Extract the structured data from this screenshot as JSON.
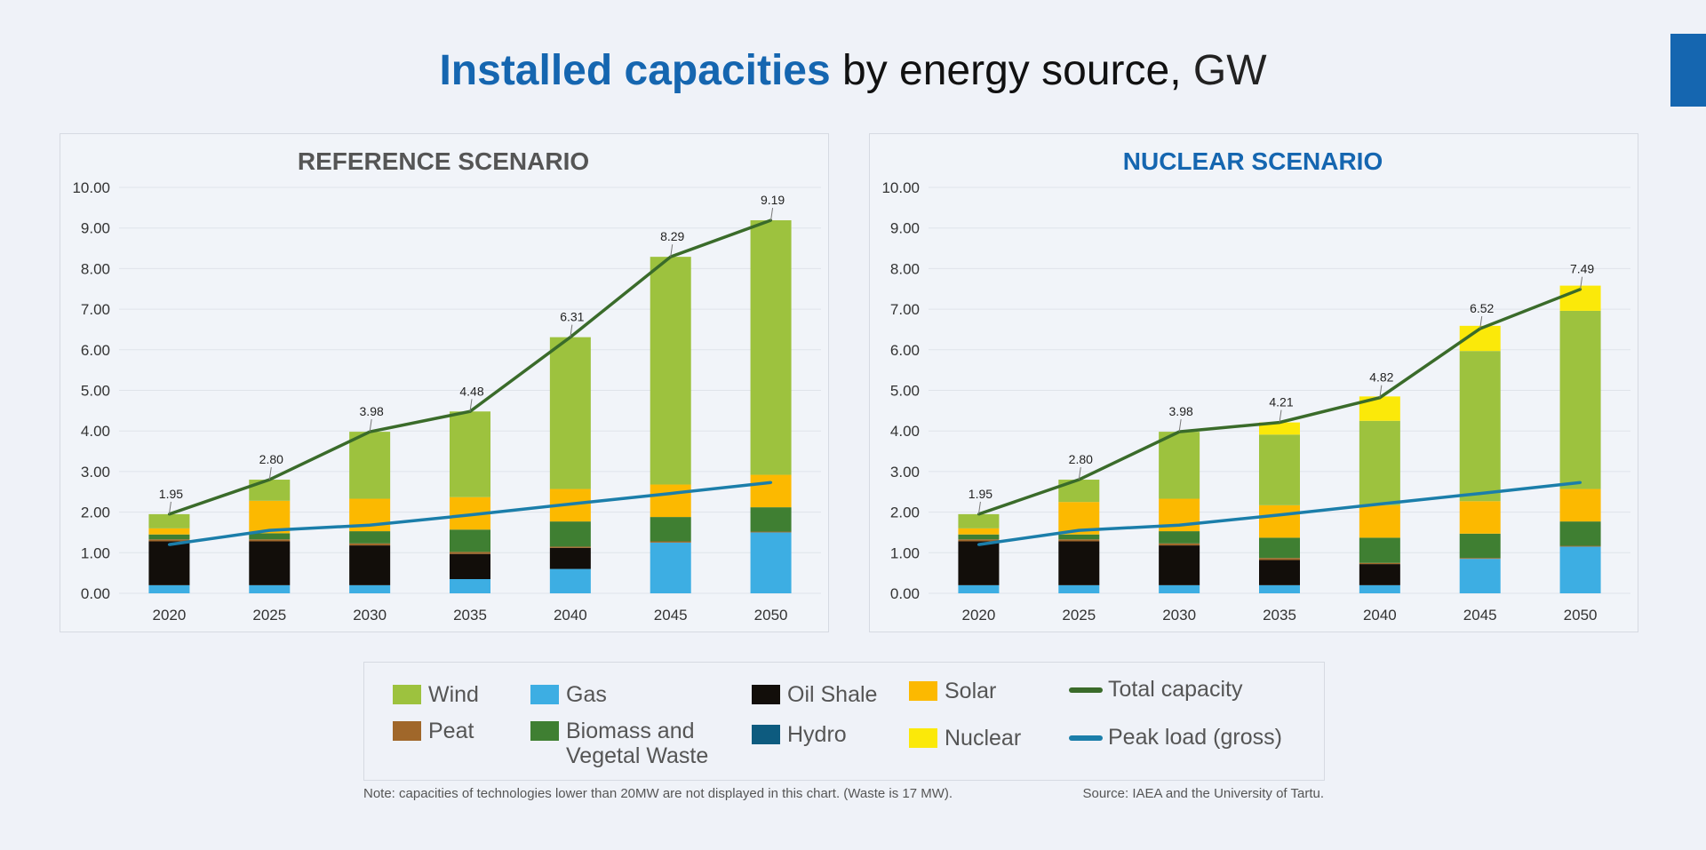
{
  "title": {
    "bold": "Installed capacities",
    "rest": " by energy source,",
    "unit": " GW"
  },
  "colors": {
    "accent": "#1566b0",
    "Wind": "#9dc23e",
    "Gas": "#3daee3",
    "Oil Shale": "#120e0a",
    "Solar": "#fcb900",
    "Peat": "#a0672a",
    "Biomass and Vegetal Waste": "#3f7f32",
    "Hydro": "#0d5b7f",
    "Nuclear": "#fbe909",
    "Total capacity": "#3a6b2a",
    "Peak load (gross)": "#1b7eaa"
  },
  "legend": [
    {
      "key": "Wind",
      "label": "Wind",
      "kind": "swatch"
    },
    {
      "key": "Gas",
      "label": "Gas",
      "kind": "swatch"
    },
    {
      "key": "Oil Shale",
      "label": "Oil Shale",
      "kind": "swatch"
    },
    {
      "key": "Solar",
      "label": "Solar",
      "kind": "swatch"
    },
    {
      "key": "Total capacity",
      "label": "Total capacity",
      "kind": "line"
    },
    {
      "key": "Peat",
      "label": "Peat",
      "kind": "swatch"
    },
    {
      "key": "Biomass and Vegetal Waste",
      "label": "Biomass and\nVegetal Waste",
      "kind": "swatch"
    },
    {
      "key": "Hydro",
      "label": "Hydro",
      "kind": "swatch"
    },
    {
      "key": "Nuclear",
      "label": "Nuclear",
      "kind": "swatch"
    },
    {
      "key": "Peak load (gross)",
      "label": "Peak load (gross)",
      "kind": "line"
    }
  ],
  "note": "Note: capacities of technologies lower than 20MW are not displayed in this chart. (Waste is 17 MW).",
  "source": "Source: IAEA and the University of Tartu.",
  "chart_data": [
    {
      "type": "bar",
      "stacked": true,
      "title": "REFERENCE SCENARIO",
      "title_color": "#555555",
      "categories": [
        "2020",
        "2025",
        "2030",
        "2035",
        "2040",
        "2045",
        "2050"
      ],
      "ylim": [
        0,
        10
      ],
      "yticks": [
        "0.00",
        "1.00",
        "2.00",
        "3.00",
        "4.00",
        "5.00",
        "6.00",
        "7.00",
        "8.00",
        "9.00",
        "10.00"
      ],
      "grid": true,
      "series": [
        {
          "name": "Gas",
          "values": [
            0.2,
            0.2,
            0.2,
            0.35,
            0.6,
            1.25,
            1.5
          ]
        },
        {
          "name": "Oil Shale",
          "values": [
            1.08,
            1.08,
            0.98,
            0.62,
            0.52,
            0.0,
            0.0
          ]
        },
        {
          "name": "Peat",
          "values": [
            0.05,
            0.05,
            0.05,
            0.05,
            0.03,
            0.03,
            0.02
          ]
        },
        {
          "name": "Biomass and Vegetal Waste",
          "values": [
            0.12,
            0.15,
            0.3,
            0.55,
            0.62,
            0.6,
            0.6
          ]
        },
        {
          "name": "Solar",
          "values": [
            0.15,
            0.8,
            0.8,
            0.8,
            0.8,
            0.8,
            0.8
          ]
        },
        {
          "name": "Wind",
          "values": [
            0.35,
            0.52,
            1.65,
            2.11,
            3.74,
            5.61,
            6.27
          ]
        }
      ],
      "lines": [
        {
          "name": "Total capacity",
          "values": [
            1.95,
            2.8,
            3.98,
            4.48,
            6.31,
            8.29,
            9.19
          ],
          "data_labels": [
            "1.95",
            "2.80",
            "3.98",
            "4.48",
            "6.31",
            "8.29",
            "9.19"
          ]
        },
        {
          "name": "Peak load (gross)",
          "values": [
            1.2,
            1.55,
            1.68,
            1.93,
            2.2,
            2.46,
            2.73
          ]
        }
      ]
    },
    {
      "type": "bar",
      "stacked": true,
      "title": "NUCLEAR SCENARIO",
      "title_color": "#1566b0",
      "categories": [
        "2020",
        "2025",
        "2030",
        "2035",
        "2040",
        "2045",
        "2050"
      ],
      "ylim": [
        0,
        10
      ],
      "yticks": [
        "0.00",
        "1.00",
        "2.00",
        "3.00",
        "4.00",
        "5.00",
        "6.00",
        "7.00",
        "8.00",
        "9.00",
        "10.00"
      ],
      "grid": true,
      "series": [
        {
          "name": "Gas",
          "values": [
            0.2,
            0.2,
            0.2,
            0.2,
            0.2,
            0.85,
            1.15
          ]
        },
        {
          "name": "Oil Shale",
          "values": [
            1.08,
            1.08,
            0.98,
            0.62,
            0.52,
            0.0,
            0.0
          ]
        },
        {
          "name": "Peat",
          "values": [
            0.05,
            0.05,
            0.05,
            0.05,
            0.03,
            0.02,
            0.02
          ]
        },
        {
          "name": "Biomass and Vegetal Waste",
          "values": [
            0.12,
            0.12,
            0.3,
            0.5,
            0.62,
            0.6,
            0.6
          ]
        },
        {
          "name": "Solar",
          "values": [
            0.15,
            0.8,
            0.8,
            0.8,
            0.8,
            0.8,
            0.8
          ]
        },
        {
          "name": "Wind",
          "values": [
            0.35,
            0.55,
            1.65,
            1.74,
            2.08,
            3.7,
            4.39
          ]
        },
        {
          "name": "Nuclear",
          "values": [
            0.0,
            0.0,
            0.0,
            0.3,
            0.6,
            0.62,
            0.62
          ]
        }
      ],
      "lines": [
        {
          "name": "Total capacity",
          "values": [
            1.95,
            2.8,
            3.98,
            4.21,
            4.82,
            6.52,
            7.49
          ],
          "data_labels": [
            "1.95",
            "2.80",
            "3.98",
            "4.21",
            "4.82",
            "6.52",
            "7.49"
          ]
        },
        {
          "name": "Peak load (gross)",
          "values": [
            1.2,
            1.55,
            1.68,
            1.93,
            2.2,
            2.46,
            2.73
          ]
        }
      ]
    }
  ]
}
